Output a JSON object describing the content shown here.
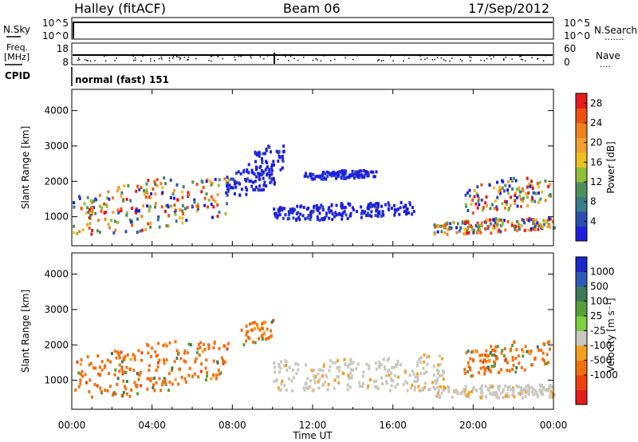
{
  "header": {
    "station": "Halley (fitACF)",
    "beam": "Beam 06",
    "date": "17/Sep/2012"
  },
  "nsky_panel": {
    "label": "N.Sky",
    "ticks_left": [
      "10^5",
      "10^0"
    ],
    "ticks_right": [
      "10^5",
      "10^0"
    ],
    "right_label": "N.Search",
    "right_dots": "......."
  },
  "freq_panel": {
    "label_line1": "Freq.",
    "label_line2": "[MHz]",
    "ticks_left": [
      "18",
      "8"
    ],
    "ticks_right": [
      "60",
      "0"
    ],
    "right_label": "Nave",
    "right_dots": "...."
  },
  "cpid_panel": {
    "label": "CPID",
    "text": "normal (fast) 151"
  },
  "chart_data": [
    {
      "type": "heatmap",
      "title": "",
      "xlabel": "Time UT",
      "ylabel": "Slant Range [km]",
      "x_ticks": [
        "00:00",
        "04:00",
        "08:00",
        "12:00",
        "16:00",
        "20:00",
        "00:00"
      ],
      "xlim": [
        0,
        24
      ],
      "y_ticks": [
        1000,
        2000,
        3000,
        4000
      ],
      "ylim": [
        180,
        4600
      ],
      "colorbar": {
        "label": "Power [dB]",
        "ticks": [
          4,
          8,
          12,
          16,
          20,
          24,
          28
        ],
        "range": [
          0,
          30
        ],
        "colors": [
          "#1f1fe0",
          "#2a4fb0",
          "#3a7d8a",
          "#4f8f5a",
          "#8fbf3a",
          "#f0c020",
          "#f3a030",
          "#f08020",
          "#f05010",
          "#e61a1a"
        ]
      },
      "regions": [
        {
          "t0": 0.0,
          "t1": 7.8,
          "r0": 500,
          "r1": 2100,
          "kind": "mixed"
        },
        {
          "t0": 7.6,
          "t1": 10.2,
          "r0": 1600,
          "r1": 2400,
          "kind": "weak"
        },
        {
          "t0": 8.5,
          "t1": 10.6,
          "r0": 2000,
          "r1": 3000,
          "kind": "weak"
        },
        {
          "t0": 10.0,
          "t1": 17.0,
          "r0": 900,
          "r1": 1400,
          "kind": "weak"
        },
        {
          "t0": 11.5,
          "t1": 15.2,
          "r0": 2050,
          "r1": 2300,
          "kind": "weak"
        },
        {
          "t0": 18.0,
          "t1": 24.0,
          "r0": 500,
          "r1": 950,
          "kind": "mixed"
        },
        {
          "t0": 19.5,
          "t1": 23.8,
          "r0": 1100,
          "r1": 2100,
          "kind": "mixed"
        }
      ]
    },
    {
      "type": "heatmap",
      "title": "",
      "xlabel": "Time UT",
      "ylabel": "Slant Range [km]",
      "x_ticks": [
        "00:00",
        "04:00",
        "08:00",
        "12:00",
        "16:00",
        "20:00",
        "00:00"
      ],
      "xlim": [
        0,
        24
      ],
      "y_ticks": [
        1000,
        2000,
        3000,
        4000
      ],
      "ylim": [
        180,
        4600
      ],
      "colorbar": {
        "label": "Velocity [m s⁻¹]",
        "ticks": [
          1000,
          500,
          100,
          25,
          -25,
          -100,
          -500,
          -1000
        ],
        "colors": [
          "#1a28cc",
          "#2f59b8",
          "#3b7a5a",
          "#55a03a",
          "#7cd040",
          "#c8c8c0",
          "#f6a020",
          "#f07010",
          "#f04010",
          "#e61a1a"
        ]
      },
      "regions": [
        {
          "t0": 0.0,
          "t1": 7.8,
          "r0": 500,
          "r1": 2100,
          "kind": "negative"
        },
        {
          "t0": 8.4,
          "t1": 10.0,
          "r0": 2000,
          "r1": 2700,
          "kind": "negative"
        },
        {
          "t0": 10.0,
          "t1": 18.5,
          "r0": 700,
          "r1": 1900,
          "kind": "zero"
        },
        {
          "t0": 18.0,
          "t1": 24.0,
          "r0": 500,
          "r1": 950,
          "kind": "zero"
        },
        {
          "t0": 19.5,
          "t1": 23.8,
          "r0": 1100,
          "r1": 2100,
          "kind": "negative"
        }
      ]
    }
  ]
}
